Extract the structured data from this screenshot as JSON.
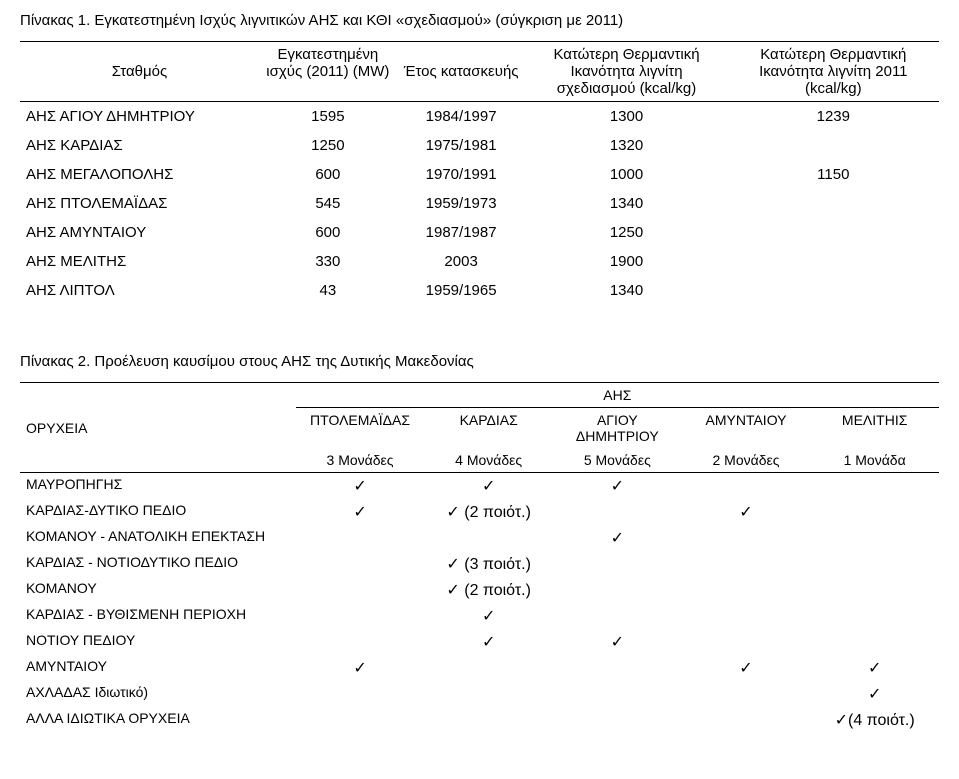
{
  "table1": {
    "title": "Πίνακας 1. Εγκατεστημένη Ισχύς λιγνιτικών ΑΗΣ και ΚΘΙ «σχεδιασμού» (σύγκριση με 2011)",
    "headers": {
      "c1": "Σταθμός",
      "c2": "Εγκατεστημένη ισχύς (2011) (MW)",
      "c3": "Έτος κατασκευής",
      "c4": "Κατώτερη Θερμαντική Ικανότητα λιγνίτη σχεδιασμού (kcal/kg)",
      "c5": "Κατώτερη Θερμαντική Ικανότητα λιγνίτη 2011 (kcal/kg)"
    },
    "rows": [
      {
        "c1": "ΑΗΣ ΑΓΙΟΥ ΔΗΜΗΤΡΙΟΥ",
        "c2": "1595",
        "c3": "1984/1997",
        "c4": "1300",
        "c5": "1239"
      },
      {
        "c1": "ΑΗΣ ΚΑΡΔΙΑΣ",
        "c2": "1250",
        "c3": "1975/1981",
        "c4": "1320",
        "c5": ""
      },
      {
        "c1": "ΑΗΣ ΜΕΓΑΛΟΠΟΛΗΣ",
        "c2": "600",
        "c3": "1970/1991",
        "c4": "1000",
        "c5": "1150"
      },
      {
        "c1": "ΑΗΣ ΠΤΟΛΕΜΑΪΔΑΣ",
        "c2": "545",
        "c3": "1959/1973",
        "c4": "1340",
        "c5": ""
      },
      {
        "c1": "ΑΗΣ ΑΜΥΝΤΑΙΟΥ",
        "c2": "600",
        "c3": "1987/1987",
        "c4": "1250",
        "c5": ""
      },
      {
        "c1": "ΑΗΣ ΜΕΛΙΤΗΣ",
        "c2": "330",
        "c3": "2003",
        "c4": "1900",
        "c5": ""
      },
      {
        "c1": "ΑΗΣ ΛΙΠΤΟΛ",
        "c2": "43",
        "c3": "1959/1965",
        "c4": "1340",
        "c5": ""
      }
    ]
  },
  "table2": {
    "title": "Πίνακας 2. Προέλευση καυσίμου στους ΑΗΣ της Δυτικής Μακεδονίας",
    "group_header": "ΑΗΣ",
    "row_label_header": "ΟΡΥΧΕΙΑ",
    "cols": [
      {
        "name": "ΠΤΟΛΕΜΑΪΔΑΣ",
        "units": "3 Μονάδες"
      },
      {
        "name": "ΚΑΡΔΙΑΣ",
        "units": "4 Μονάδες"
      },
      {
        "name": "ΑΓΙΟΥ ΔΗΜΗΤΡΙΟΥ",
        "units": "5 Μονάδες"
      },
      {
        "name": "ΑΜΥΝΤΑΙΟΥ",
        "units": "2 Μονάδες"
      },
      {
        "name": "ΜΕΛΙΤΗΙΣ",
        "units": "1 Μονάδα"
      }
    ],
    "check": "✓",
    "rows": [
      {
        "label": "ΜΑΥΡΟΠΗΓΗΣ",
        "cells": [
          "✓",
          "✓",
          "✓",
          "",
          ""
        ]
      },
      {
        "label": "ΚΑΡΔΙΑΣ-ΔΥΤΙΚΟ ΠΕΔΙΟ",
        "cells": [
          "✓",
          "✓ (2 ποιότ.)",
          "",
          "✓",
          ""
        ]
      },
      {
        "label": "ΚΟΜΑΝΟΥ - ΑΝΑΤΟΛΙΚΗ ΕΠΕΚΤΑΣΗ",
        "cells": [
          "",
          "",
          "✓",
          "",
          ""
        ]
      },
      {
        "label": "ΚΑΡΔΙΑΣ - ΝΟΤΙΟΔΥΤΙΚΟ ΠΕΔΙΟ",
        "cells": [
          "",
          "✓ (3 ποιότ.)",
          "",
          "",
          ""
        ]
      },
      {
        "label": "ΚΟΜΑΝΟΥ",
        "cells": [
          "",
          "✓ (2 ποιότ.)",
          "",
          "",
          ""
        ]
      },
      {
        "label": "ΚΑΡΔΙΑΣ - ΒΥΘΙΣΜΕΝΗ ΠΕΡΙΟΧΗ",
        "cells": [
          "",
          "✓",
          "",
          "",
          ""
        ]
      },
      {
        "label": "ΝΟΤΙΟΥ ΠΕΔΙΟΥ",
        "cells": [
          "",
          "✓",
          "✓",
          "",
          ""
        ]
      },
      {
        "label": "ΑΜΥΝΤΑΙΟΥ",
        "cells": [
          "✓",
          "",
          "",
          "✓",
          "✓"
        ]
      },
      {
        "label": "ΑΧΛΑΔΑΣ Ιδιωτικό)",
        "cells": [
          "",
          "",
          "",
          "",
          "✓"
        ]
      },
      {
        "label": "ΑΛΛΑ ΙΔΙΩΤΙΚΑ ΟΡΥΧΕΙΑ",
        "cells": [
          "",
          "",
          "",
          "",
          "✓(4 ποιότ.)"
        ]
      }
    ]
  }
}
